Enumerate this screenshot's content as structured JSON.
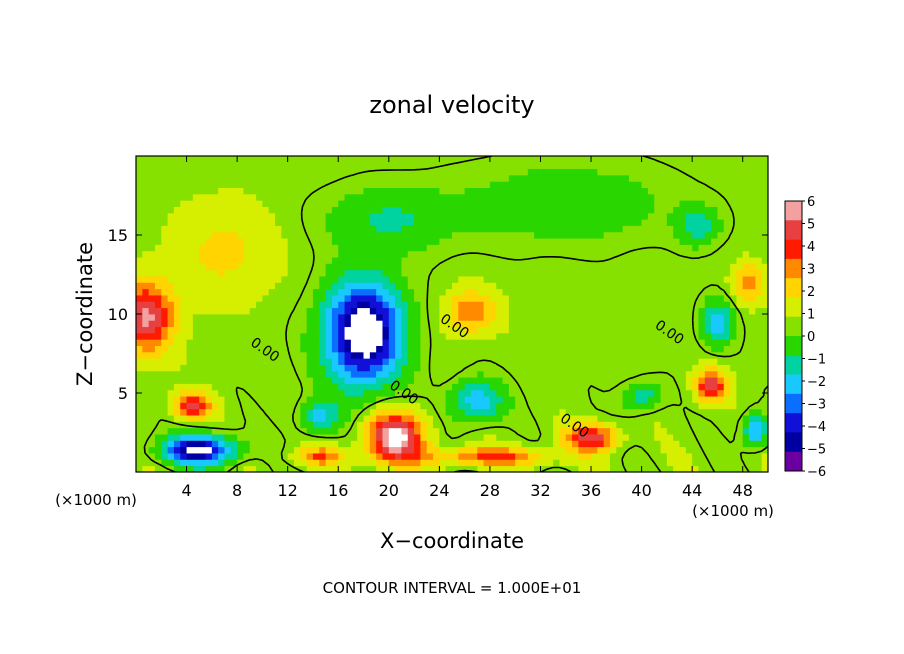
{
  "chart_data": {
    "type": "heatmap",
    "title": "zonal velocity",
    "xlabel": "X−coordinate",
    "ylabel": "Z−coordinate",
    "x_unit_left": "(×1000 m)",
    "x_unit_right": "(×1000 m)",
    "footer": "CONTOUR INTERVAL = 1.000E+01",
    "xlim": [
      0,
      50
    ],
    "ylim": [
      0,
      20
    ],
    "x_ticks": [
      "4",
      "8",
      "12",
      "16",
      "20",
      "24",
      "28",
      "32",
      "36",
      "40",
      "44",
      "48"
    ],
    "x_tick_values": [
      4,
      8,
      12,
      16,
      20,
      24,
      28,
      32,
      36,
      40,
      44,
      48
    ],
    "y_ticks": [
      "5",
      "10",
      "15"
    ],
    "y_tick_values": [
      5,
      10,
      15
    ],
    "colorbar": {
      "labels": [
        "6",
        "5",
        "4",
        "3",
        "2",
        "1",
        "0",
        "−1",
        "−2",
        "−3",
        "−4",
        "−5",
        "−6"
      ],
      "colors": [
        "#f2a0a0",
        "#e84040",
        "#ff1a00",
        "#ff8a00",
        "#ffd400",
        "#d6ee00",
        "#86e000",
        "#2ad600",
        "#00d2a0",
        "#19c8ff",
        "#0a6eff",
        "#1010d8",
        "#0000a0",
        "#6a00a0"
      ]
    },
    "contour_labels": [
      {
        "text": "0.00",
        "x": 10,
        "y": 7.5
      },
      {
        "text": "0.00",
        "x": 25,
        "y": 9.0
      },
      {
        "text": "0.00",
        "x": 42,
        "y": 8.6
      },
      {
        "text": "0.00",
        "x": 21,
        "y": 4.8
      },
      {
        "text": "0.00",
        "x": 34.5,
        "y": 2.7
      }
    ],
    "field_features": [
      {
        "x": 0.8,
        "y": 9.8,
        "sx": 2.2,
        "sy": 2.2,
        "v": 5.5
      },
      {
        "x": 4.5,
        "y": 4.2,
        "sx": 1.5,
        "sy": 0.8,
        "v": 4.5
      },
      {
        "x": 18,
        "y": 8.8,
        "sx": 3.0,
        "sy": 3.2,
        "v": -8
      },
      {
        "x": 20.5,
        "y": 2.2,
        "sx": 2.2,
        "sy": 1.6,
        "v": 6.5
      },
      {
        "x": 5,
        "y": 1.4,
        "sx": 2.8,
        "sy": 0.9,
        "v": -7
      },
      {
        "x": 26.5,
        "y": 10.2,
        "sx": 2.0,
        "sy": 1.4,
        "v": 3.0
      },
      {
        "x": 36,
        "y": 2.2,
        "sx": 2.0,
        "sy": 0.8,
        "v": 5
      },
      {
        "x": 45.5,
        "y": 5.5,
        "sx": 1.2,
        "sy": 1.0,
        "v": 5
      },
      {
        "x": 46,
        "y": 9.4,
        "sx": 1.2,
        "sy": 1.4,
        "v": -3.5
      },
      {
        "x": 44.5,
        "y": 15.6,
        "sx": 1.6,
        "sy": 1.2,
        "v": -2.4
      },
      {
        "x": 27,
        "y": 4.5,
        "sx": 2.0,
        "sy": 1.3,
        "v": -3.5
      },
      {
        "x": 14.5,
        "y": 3.5,
        "sx": 1.5,
        "sy": 1.0,
        "v": -3.0
      },
      {
        "x": 28,
        "y": 1.0,
        "sx": 5.0,
        "sy": 0.6,
        "v": 3.5
      },
      {
        "x": 14.5,
        "y": 1.0,
        "sx": 2.0,
        "sy": 0.6,
        "v": 3.0
      },
      {
        "x": 48.5,
        "y": 12.0,
        "sx": 1.2,
        "sy": 1.2,
        "v": 3.0
      },
      {
        "x": 20,
        "y": 16.0,
        "sx": 5.0,
        "sy": 2.0,
        "v": -1.8
      },
      {
        "x": 34,
        "y": 17.0,
        "sx": 8.0,
        "sy": 2.5,
        "v": -1.5
      },
      {
        "x": 7,
        "y": 14.0,
        "sx": 4.0,
        "sy": 3.0,
        "v": 1.6
      },
      {
        "x": 40,
        "y": 4.8,
        "sx": 1.5,
        "sy": 0.9,
        "v": -2.5
      },
      {
        "x": 49,
        "y": 2.6,
        "sx": 1.0,
        "sy": 1.0,
        "v": -4.0
      }
    ]
  }
}
